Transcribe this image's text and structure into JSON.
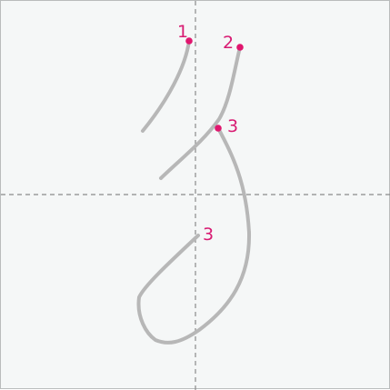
{
  "diagram": {
    "character": "ゟ",
    "colors": {
      "background": "#f5f7f7",
      "border": "#b9bcbc",
      "guide": "#8a8a8a",
      "stroke": "#b7b7b7",
      "marker": "#e0166e",
      "number": "#d81b72"
    },
    "strokes": [
      {
        "number": "1"
      },
      {
        "number": "2"
      },
      {
        "number": "3"
      }
    ],
    "labels": [
      {
        "text": "1"
      },
      {
        "text": "2"
      },
      {
        "text": "3"
      },
      {
        "text": "3"
      }
    ]
  }
}
